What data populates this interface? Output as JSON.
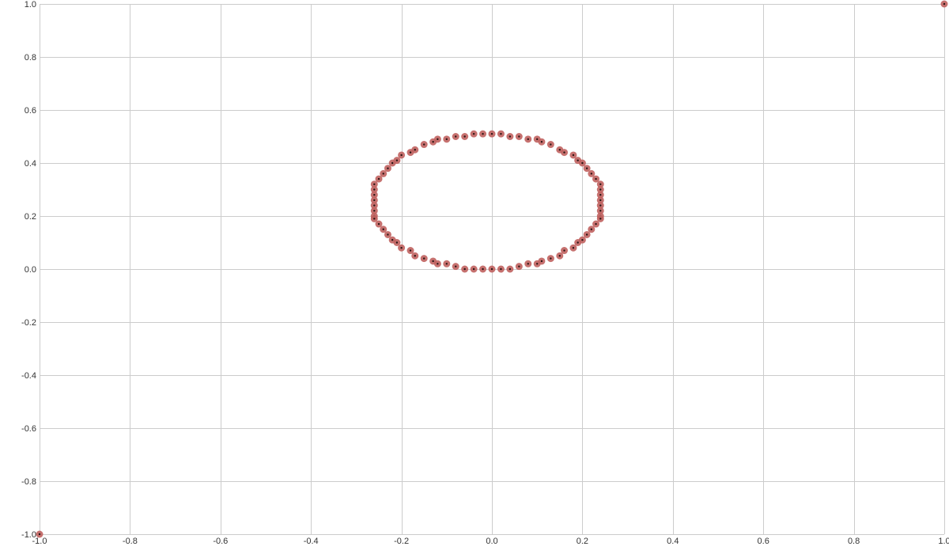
{
  "chart_data": {
    "type": "scatter",
    "title": "",
    "xlabel": "",
    "ylabel": "",
    "xlim": [
      -1.0,
      1.0
    ],
    "ylim": [
      -1.0,
      1.0
    ],
    "grid": true,
    "x_ticks": [
      "-1.0",
      "-0.8",
      "-0.6",
      "-0.4",
      "-0.2",
      "0.0",
      "0.2",
      "0.4",
      "0.6",
      "0.8",
      "1.0"
    ],
    "y_ticks": [
      "1.0",
      "0.8",
      "0.6",
      "0.4",
      "0.2",
      "0.0",
      "-0.2",
      "-0.4",
      "-0.6",
      "-0.8",
      "-1.0"
    ],
    "marker_color": "#c0625f",
    "marker_center_color": "#2a1414",
    "series": [
      {
        "points": [
          [
            -1.0,
            -1.0
          ],
          [
            1.0,
            1.0
          ],
          [
            -0.26,
            0.32
          ],
          [
            -0.26,
            0.3
          ],
          [
            -0.26,
            0.28
          ],
          [
            -0.26,
            0.26
          ],
          [
            -0.26,
            0.24
          ],
          [
            -0.26,
            0.22
          ],
          [
            -0.26,
            0.2
          ],
          [
            -0.26,
            0.19
          ],
          [
            0.24,
            0.32
          ],
          [
            0.24,
            0.3
          ],
          [
            0.24,
            0.28
          ],
          [
            0.24,
            0.26
          ],
          [
            0.24,
            0.24
          ],
          [
            0.24,
            0.22
          ],
          [
            0.24,
            0.2
          ],
          [
            0.24,
            0.19
          ],
          [
            -0.25,
            0.34
          ],
          [
            -0.24,
            0.36
          ],
          [
            -0.23,
            0.38
          ],
          [
            -0.22,
            0.4
          ],
          [
            -0.21,
            0.41
          ],
          [
            -0.2,
            0.43
          ],
          [
            -0.18,
            0.44
          ],
          [
            -0.17,
            0.45
          ],
          [
            -0.15,
            0.47
          ],
          [
            -0.13,
            0.48
          ],
          [
            -0.12,
            0.49
          ],
          [
            -0.1,
            0.49
          ],
          [
            -0.08,
            0.5
          ],
          [
            -0.06,
            0.5
          ],
          [
            -0.04,
            0.51
          ],
          [
            -0.02,
            0.51
          ],
          [
            0.0,
            0.51
          ],
          [
            0.02,
            0.51
          ],
          [
            0.04,
            0.5
          ],
          [
            0.06,
            0.5
          ],
          [
            0.08,
            0.49
          ],
          [
            0.1,
            0.49
          ],
          [
            0.11,
            0.48
          ],
          [
            0.13,
            0.47
          ],
          [
            0.15,
            0.45
          ],
          [
            0.16,
            0.44
          ],
          [
            0.18,
            0.43
          ],
          [
            0.19,
            0.41
          ],
          [
            0.2,
            0.4
          ],
          [
            0.21,
            0.38
          ],
          [
            0.22,
            0.36
          ],
          [
            0.23,
            0.34
          ],
          [
            -0.25,
            0.17
          ],
          [
            -0.24,
            0.15
          ],
          [
            -0.23,
            0.13
          ],
          [
            -0.22,
            0.11
          ],
          [
            -0.21,
            0.1
          ],
          [
            -0.2,
            0.08
          ],
          [
            -0.18,
            0.07
          ],
          [
            -0.17,
            0.05
          ],
          [
            -0.15,
            0.04
          ],
          [
            -0.13,
            0.03
          ],
          [
            -0.12,
            0.02
          ],
          [
            -0.1,
            0.02
          ],
          [
            -0.08,
            0.01
          ],
          [
            -0.06,
            0.0
          ],
          [
            -0.04,
            0.0
          ],
          [
            -0.02,
            0.0
          ],
          [
            0.0,
            0.0
          ],
          [
            0.02,
            0.0
          ],
          [
            0.04,
            0.0
          ],
          [
            0.06,
            0.01
          ],
          [
            0.08,
            0.02
          ],
          [
            0.1,
            0.02
          ],
          [
            0.11,
            0.03
          ],
          [
            0.13,
            0.04
          ],
          [
            0.15,
            0.05
          ],
          [
            0.16,
            0.07
          ],
          [
            0.18,
            0.08
          ],
          [
            0.19,
            0.1
          ],
          [
            0.2,
            0.11
          ],
          [
            0.21,
            0.13
          ],
          [
            0.22,
            0.15
          ],
          [
            0.23,
            0.17
          ]
        ]
      }
    ]
  }
}
